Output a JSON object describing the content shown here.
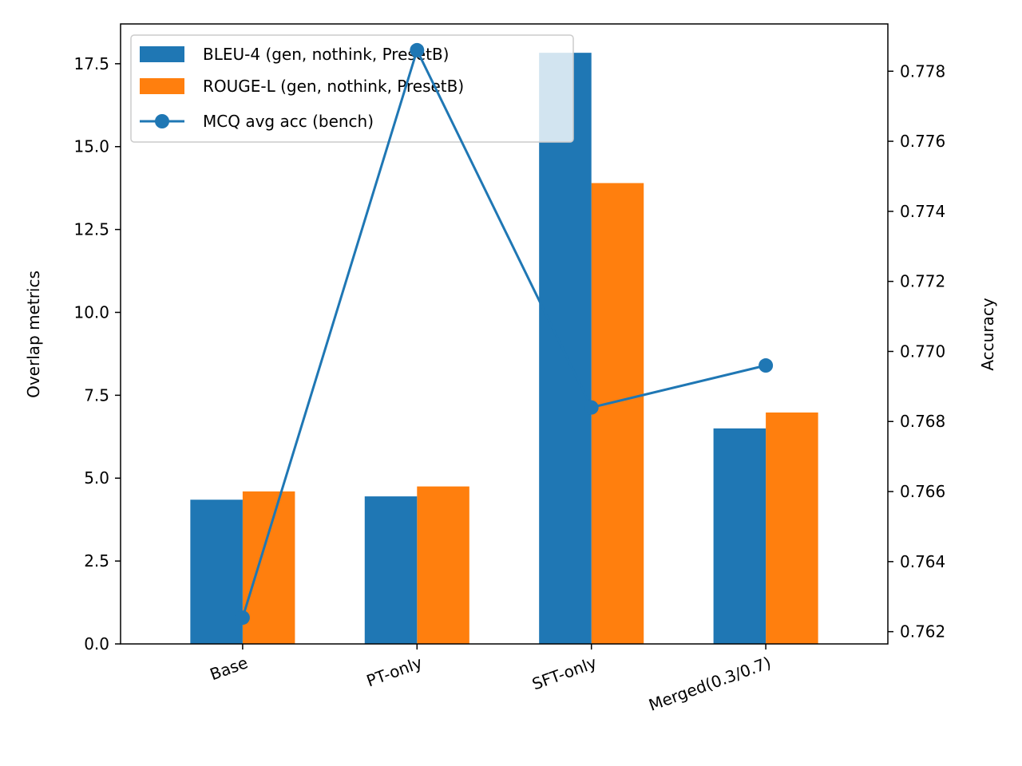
{
  "chart_data": {
    "type": "bar",
    "title": "",
    "categories": [
      "Base",
      "PT-only",
      "SFT-only",
      "Merged(0.3/0.7)"
    ],
    "series": [
      {
        "name": "BLEU-4 (gen, nothink, PresetB)",
        "axis": "left",
        "kind": "bar",
        "color": "#1f77b4",
        "values": [
          4.35,
          4.45,
          17.83,
          6.5
        ]
      },
      {
        "name": "ROUGE-L (gen, nothink, PresetB)",
        "axis": "left",
        "kind": "bar",
        "color": "#ff7f0e",
        "values": [
          4.6,
          4.75,
          13.9,
          6.98
        ]
      },
      {
        "name": "MCQ avg acc (bench)",
        "axis": "right",
        "kind": "line",
        "marker": "circle",
        "color": "#1f77b4",
        "values": [
          0.7624,
          0.7786,
          0.7684,
          0.7696
        ]
      }
    ],
    "xlabel": "",
    "ylabel": "Overlap metrics",
    "ylabel_right": "Accuracy",
    "ylim": [
      0,
      18.7
    ],
    "ylim_right": [
      0.76165,
      0.77935
    ],
    "yticks": [
      "0.0",
      "2.5",
      "5.0",
      "7.5",
      "10.0",
      "12.5",
      "15.0",
      "17.5"
    ],
    "yticks_right": [
      "0.762",
      "0.764",
      "0.766",
      "0.768",
      "0.770",
      "0.772",
      "0.774",
      "0.776",
      "0.778"
    ],
    "grid": false,
    "legend_position": "upper-left"
  }
}
